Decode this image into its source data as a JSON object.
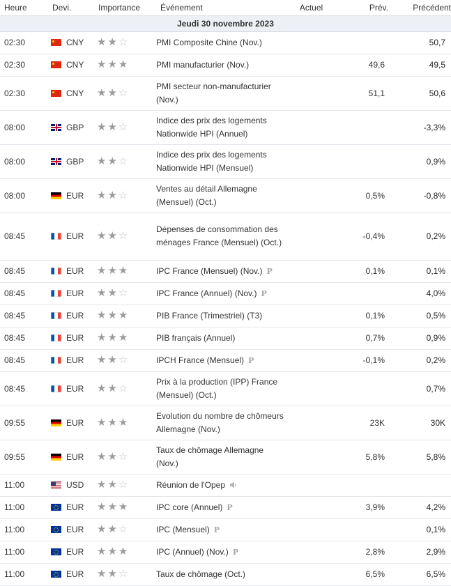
{
  "headers": {
    "heure": "Heure",
    "devise": "Devi.",
    "importance": "Importance",
    "evenement": "Événement",
    "actuel": "Actuel",
    "prev": "Prév.",
    "precedent": "Précédent"
  },
  "date_label": "Jeudi 30 novembre 2023",
  "colors": {
    "date_row_bg": "#edf0f5",
    "star_full": "#9b9b9b",
    "star_empty": "#c4c4c4"
  },
  "events": [
    {
      "time": "02:30",
      "currency": "CNY",
      "flag": "flag-cn",
      "stars": 2,
      "event": "PMI Composite Chine (Nov.)",
      "actual": "",
      "forecast": "",
      "previous": "50,7"
    },
    {
      "time": "02:30",
      "currency": "CNY",
      "flag": "flag-cn",
      "stars": 3,
      "event": "PMI manufacturier (Nov.)",
      "actual": "",
      "forecast": "49,6",
      "previous": "49,5"
    },
    {
      "time": "02:30",
      "currency": "CNY",
      "flag": "flag-cn",
      "stars": 2,
      "event": "PMI secteur non-manufacturier (Nov.)",
      "actual": "",
      "forecast": "51,1",
      "previous": "50,6"
    },
    {
      "time": "08:00",
      "currency": "GBP",
      "flag": "flag-gb",
      "stars": 2,
      "event": "Indice des prix des logements Nationwide HPI (Annuel)",
      "actual": "",
      "forecast": "",
      "previous": "-3,3%"
    },
    {
      "time": "08:00",
      "currency": "GBP",
      "flag": "flag-gb",
      "stars": 2,
      "event": "Indice des prix des logements Nationwide HPI (Mensuel)",
      "actual": "",
      "forecast": "",
      "previous": "0,9%"
    },
    {
      "time": "08:00",
      "currency": "EUR",
      "flag": "flag-de",
      "stars": 2,
      "event": "Ventes au détail Allemagne (Mensuel) (Oct.)",
      "actual": "",
      "forecast": "0,5%",
      "previous": "-0,8%"
    },
    {
      "time": "08:45",
      "currency": "EUR",
      "flag": "flag-fr",
      "stars": 2,
      "event": "Dépenses de consommation des ménages France (Mensuel) (Oct.)",
      "actual": "",
      "forecast": "-0,4%",
      "previous": "0,2%"
    },
    {
      "time": "08:45",
      "currency": "EUR",
      "flag": "flag-fr",
      "stars": 3,
      "event": "IPC France (Mensuel) (Nov.)",
      "icon": "preliminary-icon",
      "actual": "",
      "forecast": "0,1%",
      "previous": "0,1%"
    },
    {
      "time": "08:45",
      "currency": "EUR",
      "flag": "flag-fr",
      "stars": 2,
      "event": "IPC France (Annuel) (Nov.)",
      "icon": "preliminary-icon",
      "actual": "",
      "forecast": "",
      "previous": "4,0%"
    },
    {
      "time": "08:45",
      "currency": "EUR",
      "flag": "flag-fr",
      "stars": 3,
      "event": "PIB France (Trimestriel) (T3)",
      "actual": "",
      "forecast": "0,1%",
      "previous": "0,5%"
    },
    {
      "time": "08:45",
      "currency": "EUR",
      "flag": "flag-fr",
      "stars": 3,
      "event": "PIB français (Annuel)",
      "actual": "",
      "forecast": "0,7%",
      "previous": "0,9%"
    },
    {
      "time": "08:45",
      "currency": "EUR",
      "flag": "flag-fr",
      "stars": 2,
      "event": "IPCH France (Mensuel)",
      "icon": "preliminary-icon",
      "actual": "",
      "forecast": "-0,1%",
      "previous": "0,2%"
    },
    {
      "time": "08:45",
      "currency": "EUR",
      "flag": "flag-fr",
      "stars": 2,
      "event": "Prix à la production (IPP) France (Mensuel) (Oct.)",
      "actual": "",
      "forecast": "",
      "previous": "0,7%"
    },
    {
      "time": "09:55",
      "currency": "EUR",
      "flag": "flag-de",
      "stars": 3,
      "event": "Evolution du nombre de chômeurs Allemagne (Nov.)",
      "actual": "",
      "forecast": "23K",
      "previous": "30K"
    },
    {
      "time": "09:55",
      "currency": "EUR",
      "flag": "flag-de",
      "stars": 2,
      "event": "Taux de chômage Allemagne (Nov.)",
      "actual": "",
      "forecast": "5,8%",
      "previous": "5,8%"
    },
    {
      "time": "11:00",
      "currency": "USD",
      "flag": "flag-us",
      "stars": 2,
      "event": "Réunion de l'Opep",
      "icon": "speaker-icon",
      "actual": "",
      "forecast": "",
      "previous": ""
    },
    {
      "time": "11:00",
      "currency": "EUR",
      "flag": "flag-eu",
      "stars": 3,
      "event": "IPC core (Annuel)",
      "icon": "preliminary-icon",
      "actual": "",
      "forecast": "3,9%",
      "previous": "4,2%"
    },
    {
      "time": "11:00",
      "currency": "EUR",
      "flag": "flag-eu",
      "stars": 2,
      "event": "IPC (Mensuel)",
      "icon": "preliminary-icon",
      "actual": "",
      "forecast": "",
      "previous": "0,1%"
    },
    {
      "time": "11:00",
      "currency": "EUR",
      "flag": "flag-eu",
      "stars": 3,
      "event": "IPC (Annuel) (Nov.)",
      "icon": "preliminary-icon",
      "actual": "",
      "forecast": "2,8%",
      "previous": "2,9%"
    },
    {
      "time": "11:00",
      "currency": "EUR",
      "flag": "flag-eu",
      "stars": 2,
      "event": "Taux de chômage (Oct.)",
      "actual": "",
      "forecast": "6,5%",
      "previous": "6,5%"
    }
  ]
}
